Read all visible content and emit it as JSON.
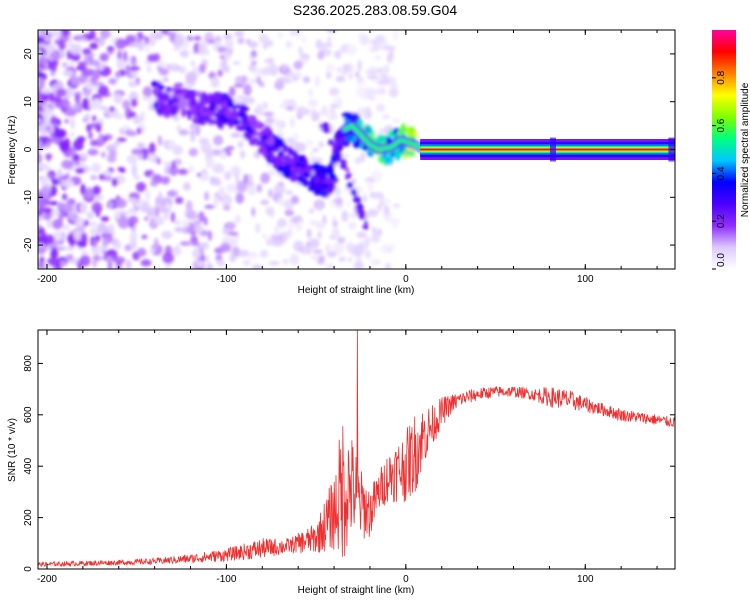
{
  "title": "S236.2025.283.08.59.G04",
  "chart_data": [
    {
      "type": "heatmap",
      "name": "spectrogram",
      "xlabel": "Height of straight line (km)",
      "ylabel": "Frequency (Hz)",
      "xlim": [
        -205,
        150
      ],
      "ylim": [
        -25,
        25
      ],
      "xticks": [
        -200,
        -100,
        0,
        100
      ],
      "yticks": [
        -20,
        -10,
        0,
        10,
        20
      ],
      "colorbar": {
        "label": "Normalized spectral amplitude",
        "range": [
          0,
          1
        ],
        "ticks": [
          "0.0",
          "0.2",
          "0.4",
          "0.6",
          "0.8"
        ],
        "tick_values": [
          0,
          0.2,
          0.4,
          0.6,
          0.8
        ],
        "colors": [
          "#ffffff",
          "#dcc8ff",
          "#8f2cff",
          "#4b00ff",
          "#0000ff",
          "#00c8ff",
          "#00ff80",
          "#80ff00",
          "#ffff00",
          "#ff8000",
          "#ff0000",
          "#ff00a0"
        ]
      },
      "ridge": [
        {
          "x": -140,
          "y": 11,
          "amp": 0.3
        },
        {
          "x": -120,
          "y": 9,
          "amp": 0.22
        },
        {
          "x": -100,
          "y": 8,
          "amp": 0.3
        },
        {
          "x": -90,
          "y": 6,
          "amp": 0.32
        },
        {
          "x": -80,
          "y": 2,
          "amp": 0.28
        },
        {
          "x": -70,
          "y": -1,
          "amp": 0.32
        },
        {
          "x": -60,
          "y": -4,
          "amp": 0.34
        },
        {
          "x": -50,
          "y": -6,
          "amp": 0.38
        },
        {
          "x": -42,
          "y": -7,
          "amp": 0.35
        },
        {
          "x": -35,
          "y": 4,
          "amp": 0.4
        },
        {
          "x": -30,
          "y": 5,
          "amp": 0.45
        },
        {
          "x": -25,
          "y": 3,
          "amp": 0.55
        },
        {
          "x": -20,
          "y": 1,
          "amp": 0.65
        },
        {
          "x": -15,
          "y": 0,
          "amp": 0.7
        },
        {
          "x": -8,
          "y": 0.5,
          "amp": 0.65
        },
        {
          "x": -3,
          "y": 2,
          "amp": 0.6
        },
        {
          "x": 5,
          "y": 1,
          "amp": 0.75
        },
        {
          "x": 10,
          "y": 0,
          "amp": 0.95
        },
        {
          "x": 150,
          "y": 0,
          "amp": 0.95
        }
      ],
      "secondary_branch": [
        {
          "x": -47,
          "y": 6
        },
        {
          "x": -40,
          "y": 1
        },
        {
          "x": -35,
          "y": -3
        },
        {
          "x": -30,
          "y": -8
        },
        {
          "x": -25,
          "y": -13
        },
        {
          "x": -22,
          "y": -16
        }
      ]
    },
    {
      "type": "line",
      "name": "snr",
      "xlabel": "Height of straight line (km)",
      "ylabel": "SNR (10 * v/v)",
      "xlim": [
        -205,
        150
      ],
      "ylim": [
        0,
        930
      ],
      "xticks": [
        -200,
        -100,
        0,
        100
      ],
      "yticks": [
        0,
        200,
        400,
        600,
        800
      ],
      "color": "#f03030",
      "series": [
        {
          "name": "SNR",
          "x": [
            -205,
            -180,
            -160,
            -140,
            -120,
            -100,
            -80,
            -65,
            -50,
            -40,
            -35,
            -30,
            -25,
            -20,
            -15,
            -10,
            -5,
            0,
            5,
            10,
            15,
            20,
            25,
            30,
            40,
            50,
            60,
            70,
            80,
            90,
            100,
            110,
            120,
            130,
            140,
            150
          ],
          "y": [
            18,
            22,
            25,
            30,
            40,
            55,
            80,
            90,
            120,
            220,
            320,
            320,
            250,
            220,
            300,
            360,
            380,
            400,
            450,
            520,
            560,
            610,
            640,
            660,
            680,
            690,
            690,
            680,
            670,
            660,
            640,
            620,
            600,
            590,
            580,
            570
          ],
          "noise": [
            8,
            10,
            10,
            12,
            18,
            25,
            40,
            30,
            60,
            150,
            300,
            200,
            140,
            100,
            80,
            100,
            120,
            140,
            160,
            120,
            80,
            60,
            40,
            30,
            25,
            22,
            22,
            22,
            40,
            40,
            30,
            25,
            25,
            22,
            22,
            20
          ]
        }
      ],
      "spike": {
        "x": -27,
        "y": 930
      }
    }
  ]
}
